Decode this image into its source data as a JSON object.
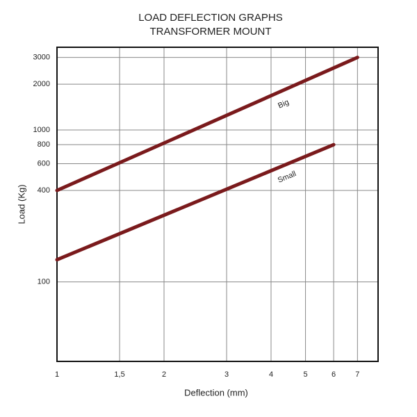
{
  "chart_data": {
    "type": "line",
    "title": "LOAD DEFLECTION GRAPHS",
    "subtitle": "TRANSFORMER MOUNT",
    "x_label": "Deflection (mm)",
    "y_label": "Load (Kg)",
    "xscale": "log",
    "yscale": "log",
    "xlim": [
      1,
      8
    ],
    "ylim": [
      30,
      3500
    ],
    "xticks": [
      1,
      {
        "value": 1.5,
        "label": "1,5"
      },
      2,
      3,
      4,
      5,
      6,
      7
    ],
    "yticks": [
      100,
      400,
      600,
      800,
      1000,
      2000,
      3000
    ],
    "grid": true,
    "series": [
      {
        "name": "Big",
        "color": "#7a1a1c",
        "x": [
          1,
          7
        ],
        "values": [
          400,
          3000
        ]
      },
      {
        "name": "Small",
        "color": "#7a1a1c",
        "x": [
          1,
          6
        ],
        "values": [
          140,
          800
        ]
      }
    ]
  }
}
